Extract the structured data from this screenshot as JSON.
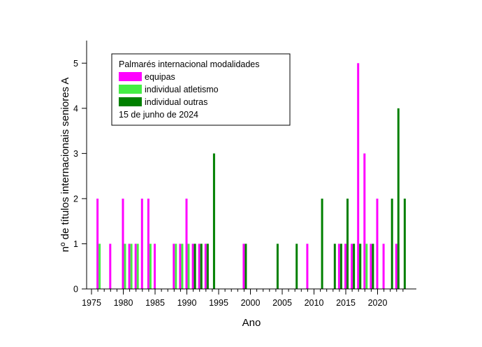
{
  "chart_data": {
    "type": "bar",
    "title": "",
    "xlabel": "Ano",
    "ylabel": "nº de títulos internacionais seniores A",
    "xlim": [
      1972.5,
      2024.5
    ],
    "ylim": [
      0,
      5.5
    ],
    "xticks": [
      1975,
      1980,
      1985,
      1990,
      1995,
      2000,
      2005,
      2010,
      2015,
      2020
    ],
    "yticks": [
      0,
      1,
      2,
      3,
      4,
      5
    ],
    "grid": false,
    "legend": {
      "title": "Palmarés internacional modalidades",
      "note": "15 de junho de 2024",
      "placement": "top-left"
    },
    "series": [
      {
        "name": "equipas",
        "color": "#ff00ff",
        "points": [
          {
            "x": 1977,
            "y": 2
          },
          {
            "x": 1979,
            "y": 1
          },
          {
            "x": 1981,
            "y": 2
          },
          {
            "x": 1982,
            "y": 1
          },
          {
            "x": 1983,
            "y": 1
          },
          {
            "x": 1984,
            "y": 2
          },
          {
            "x": 1985,
            "y": 2
          },
          {
            "x": 1986,
            "y": 1
          },
          {
            "x": 1989,
            "y": 1
          },
          {
            "x": 1990,
            "y": 1
          },
          {
            "x": 1991,
            "y": 2
          },
          {
            "x": 1992,
            "y": 1
          },
          {
            "x": 1993,
            "y": 1
          },
          {
            "x": 1994,
            "y": 1
          },
          {
            "x": 2000,
            "y": 1
          },
          {
            "x": 2010,
            "y": 1
          },
          {
            "x": 2015,
            "y": 1
          },
          {
            "x": 2016,
            "y": 1
          },
          {
            "x": 2017,
            "y": 1
          },
          {
            "x": 2018,
            "y": 5
          },
          {
            "x": 2019,
            "y": 3
          },
          {
            "x": 2020,
            "y": 1
          },
          {
            "x": 2021,
            "y": 2
          },
          {
            "x": 2022,
            "y": 1
          },
          {
            "x": 2024,
            "y": 1
          }
        ]
      },
      {
        "name": "individual atletismo",
        "color": "#44ee44",
        "points": [
          {
            "x": 1977,
            "y": 1
          },
          {
            "x": 1981,
            "y": 1
          },
          {
            "x": 1982,
            "y": 1
          },
          {
            "x": 1983,
            "y": 1
          },
          {
            "x": 1985,
            "y": 1
          },
          {
            "x": 1989,
            "y": 1
          },
          {
            "x": 1990,
            "y": 1
          },
          {
            "x": 1991,
            "y": 1
          },
          {
            "x": 1992,
            "y": 1
          },
          {
            "x": 1993,
            "y": 1
          },
          {
            "x": 1994,
            "y": 1
          },
          {
            "x": 2015,
            "y": 1
          },
          {
            "x": 2016,
            "y": 1
          },
          {
            "x": 2017,
            "y": 1
          },
          {
            "x": 2018,
            "y": 1
          },
          {
            "x": 2019,
            "y": 1
          },
          {
            "x": 2024,
            "y": 1
          }
        ]
      },
      {
        "name": "individual outras",
        "color": "#008000",
        "points": [
          {
            "x": 1992,
            "y": 1
          },
          {
            "x": 1993,
            "y": 1
          },
          {
            "x": 1994,
            "y": 1
          },
          {
            "x": 1995,
            "y": 3
          },
          {
            "x": 2000,
            "y": 1
          },
          {
            "x": 2005,
            "y": 1
          },
          {
            "x": 2008,
            "y": 1
          },
          {
            "x": 2012,
            "y": 2
          },
          {
            "x": 2014,
            "y": 1
          },
          {
            "x": 2015,
            "y": 1
          },
          {
            "x": 2016,
            "y": 2
          },
          {
            "x": 2017,
            "y": 1
          },
          {
            "x": 2018,
            "y": 1
          },
          {
            "x": 2020,
            "y": 1
          },
          {
            "x": 2023,
            "y": 2
          },
          {
            "x": 2024,
            "y": 4
          },
          {
            "x": 2025,
            "y": 2
          }
        ]
      }
    ]
  }
}
